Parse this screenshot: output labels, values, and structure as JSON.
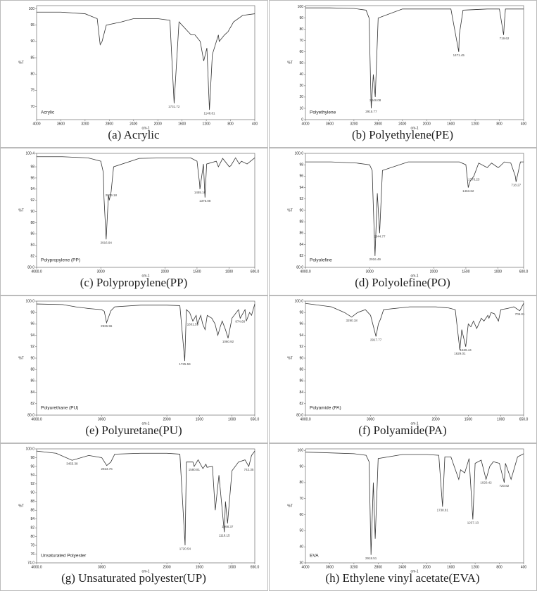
{
  "chart_data": [
    {
      "type": "line",
      "title": "(a) Acrylic",
      "annotation": "Acrylic",
      "xlabel": "cm-1",
      "ylabel": "%T",
      "x": [
        4000,
        3600,
        3200,
        3000,
        2951,
        2920,
        2850,
        2600,
        2400,
        2000,
        1800,
        1731,
        1650,
        1450,
        1387,
        1300,
        1242,
        1190,
        1148,
        1100,
        1000,
        987,
        900,
        841,
        750,
        600,
        400
      ],
      "series": [
        {
          "color": "#333333",
          "values": [
            99,
            99,
            98.5,
            97,
            89,
            90,
            95,
            96,
            97,
            97,
            96.5,
            71,
            96,
            92,
            92,
            90,
            84,
            88,
            69,
            86,
            92,
            90,
            92,
            93,
            96,
            98,
            98.5
          ]
        }
      ],
      "xlim": [
        4000,
        400
      ],
      "xticks": [
        4000,
        3600,
        3200,
        2800,
        2400,
        2000,
        1600,
        1200,
        800,
        400
      ],
      "ylim": [
        66,
        101
      ],
      "yticks": [
        70,
        75,
        80,
        85,
        90,
        95,
        100
      ],
      "peaks": [
        {
          "x": 1731.72,
          "y": 71
        },
        {
          "x": 1148.81,
          "y": 69
        }
      ]
    },
    {
      "type": "line",
      "title": "(b) Polyethylene(PE)",
      "annotation": "Polyethylene",
      "xlabel": "cm-1",
      "ylabel": "%T",
      "x": [
        4000,
        3600,
        3200,
        3000,
        2950,
        2915,
        2880,
        2848,
        2800,
        2400,
        2000,
        1600,
        1470,
        1462,
        1400,
        1000,
        800,
        730,
        719,
        700,
        400
      ],
      "series": [
        {
          "color": "#333333",
          "values": [
            99,
            99,
            98.5,
            97,
            90,
            10,
            40,
            20,
            90,
            98,
            98,
            98,
            60,
            75,
            97,
            98,
            98,
            75,
            85,
            98,
            98
          ]
        }
      ],
      "xlim": [
        4000,
        400
      ],
      "xticks": [
        4000,
        3600,
        3200,
        2800,
        2400,
        2000,
        1600,
        1200,
        800,
        400
      ],
      "ylim": [
        0,
        101
      ],
      "yticks": [
        0,
        10,
        20,
        30,
        40,
        50,
        60,
        70,
        80,
        90,
        100
      ],
      "peaks": [
        {
          "x": 2915.77,
          "y": 10
        },
        {
          "x": 2848.08,
          "y": 20
        },
        {
          "x": 1471.45,
          "y": 60
        },
        {
          "x": 719.62,
          "y": 75
        }
      ]
    },
    {
      "type": "line",
      "title": "(c) Polypropylene(PP)",
      "annotation": "Polypropylene (PP)",
      "xlabel": "cm-1",
      "ylabel": "%T",
      "x": [
        4000,
        3600,
        3200,
        3000,
        2960,
        2950,
        2916,
        2880,
        2868,
        2839,
        2800,
        2400,
        2000,
        1600,
        1500,
        1460,
        1455,
        1400,
        1376,
        1350,
        1200,
        1167,
        1100,
        997,
        973,
        900,
        841,
        808,
        720,
        600
      ],
      "series": [
        {
          "color": "#333333",
          "values": [
            99.8,
            99.8,
            99.6,
            99,
            97,
            92.5,
            85,
            93,
            92,
            93.5,
            98,
            99.5,
            99.6,
            99.6,
            99,
            95,
            94,
            98.5,
            92.5,
            98.5,
            99,
            98,
            99.5,
            98,
            98.2,
            99.6,
            98.5,
            99,
            98.5,
            99.6
          ]
        }
      ],
      "xlim": [
        4000,
        600
      ],
      "xticks": [
        {
          "value": 4000,
          "label": "4000.0"
        },
        3000,
        2000,
        1500,
        1000,
        {
          "value": 600,
          "label": "600.0"
        }
      ],
      "ylim": [
        80,
        100.4
      ],
      "yticks": [
        {
          "value": 80,
          "label": "80.0"
        },
        82,
        84,
        86,
        88,
        90,
        92,
        94,
        96,
        98,
        100.4
      ],
      "peaks": [
        {
          "x": 2916.94,
          "y": 85
        },
        {
          "x": 2839.18,
          "y": 93.5
        },
        {
          "x": 1455.16,
          "y": 94
        },
        {
          "x": 1376.08,
          "y": 92.5
        }
      ]
    },
    {
      "type": "line",
      "title": "(d) Polyolefine(PO)",
      "annotation": "Polyolefine",
      "xlabel": "cm-1",
      "ylabel": "%T",
      "x": [
        4000,
        3600,
        3200,
        3000,
        2960,
        2949,
        2916,
        2880,
        2844,
        2800,
        2400,
        2000,
        1600,
        1500,
        1463,
        1440,
        1376,
        1300,
        1167,
        1100,
        997,
        973,
        900,
        800,
        730,
        718,
        650,
        600
      ],
      "series": [
        {
          "color": "#333333",
          "values": [
            98.5,
            98.5,
            98.3,
            98,
            97,
            93,
            82,
            93,
            86,
            97,
            98.5,
            98.5,
            98.5,
            98,
            94,
            95,
            96,
            98.3,
            97.5,
            98.3,
            97.5,
            97.7,
            98.5,
            98.3,
            96,
            95,
            98.5,
            98.5
          ]
        }
      ],
      "xlim": [
        4000,
        600
      ],
      "xticks": [
        {
          "value": 4000,
          "label": "4000.0"
        },
        3000,
        2000,
        1500,
        1000,
        {
          "value": 600,
          "label": "600.0"
        }
      ],
      "ylim": [
        80,
        100
      ],
      "yticks": [
        {
          "value": 80,
          "label": "80.0"
        },
        82,
        84,
        86,
        88,
        90,
        92,
        94,
        96,
        98,
        {
          "value": 100,
          "label": "100.0"
        }
      ],
      "peaks": [
        {
          "x": 2916.49,
          "y": 82
        },
        {
          "x": 2844.77,
          "y": 86
        },
        {
          "x": 1463.62,
          "y": 94
        },
        {
          "x": 1376.23,
          "y": 96
        },
        {
          "x": 718.27,
          "y": 95
        }
      ]
    },
    {
      "type": "line",
      "title": "(e) Polyuretane(PU)",
      "annotation": "Polyurethane (PU)",
      "xlabel": "cm-1",
      "ylabel": "%T",
      "x": [
        4000,
        3600,
        3400,
        3200,
        3000,
        2960,
        2926,
        2860,
        2800,
        2400,
        2000,
        1800,
        1725,
        1700,
        1650,
        1601,
        1550,
        1530,
        1480,
        1450,
        1413,
        1380,
        1310,
        1260,
        1217,
        1180,
        1150,
        1100,
        1060,
        1000,
        900,
        874,
        800,
        780,
        730,
        700,
        650
      ],
      "series": [
        {
          "color": "#333333",
          "values": [
            99.5,
            99.4,
            99,
            98.7,
            98.5,
            98.2,
            96.2,
            98.3,
            99,
            99.3,
            99.3,
            99.2,
            89.5,
            98.5,
            98,
            96.5,
            97.5,
            96,
            97.5,
            96,
            95,
            97.5,
            97,
            96,
            94,
            95.5,
            96.5,
            95,
            93.5,
            97,
            98.5,
            97,
            98.5,
            96.5,
            98,
            97.5,
            99.5
          ]
        }
      ],
      "xlim": [
        4000,
        650
      ],
      "xticks": [
        {
          "value": 4000,
          "label": "4000.0"
        },
        3000,
        2000,
        1500,
        1000,
        {
          "value": 650,
          "label": "650.0"
        }
      ],
      "ylim": [
        80,
        100
      ],
      "yticks": [
        {
          "value": 80,
          "label": "80.0"
        },
        82,
        84,
        86,
        88,
        90,
        92,
        94,
        96,
        98,
        {
          "value": 100,
          "label": "100.0"
        }
      ],
      "peaks": [
        {
          "x": 2926.96,
          "y": 96.2
        },
        {
          "x": 1725.59,
          "y": 89.5
        },
        {
          "x": 1601.59,
          "y": 96.5
        },
        {
          "x": 1060.92,
          "y": 93.5
        },
        {
          "x": 874.68,
          "y": 97
        }
      ]
    },
    {
      "type": "line",
      "title": "(f) Polyamide(PA)",
      "annotation": "Polyamide (PA)",
      "xlabel": "cm-1",
      "ylabel": "%T",
      "x": [
        4000,
        3600,
        3400,
        3290,
        3200,
        3080,
        3000,
        2917,
        2880,
        2849,
        2800,
        2400,
        2000,
        1800,
        1700,
        1629,
        1600,
        1539,
        1500,
        1460,
        1420,
        1370,
        1300,
        1259,
        1200,
        1182,
        1150,
        1100,
        1037,
        1000,
        900,
        800,
        709,
        650
      ],
      "series": [
        {
          "color": "#333333",
          "values": [
            99.6,
            99,
            98,
            97.2,
            98,
            98.5,
            97.5,
            93.8,
            96,
            96.8,
            98.5,
            99,
            99,
            98.8,
            98.5,
            91.4,
            95,
            92,
            96,
            95.5,
            96.5,
            95.2,
            97,
            96.5,
            97.5,
            97,
            98,
            97.8,
            96.5,
            98.5,
            98.7,
            99,
            98.3,
            99.6
          ]
        }
      ],
      "xlim": [
        4000,
        650
      ],
      "xticks": [
        {
          "value": 4000,
          "label": "4000.0"
        },
        3000,
        2000,
        1500,
        1000,
        {
          "value": 650,
          "label": "650.0"
        }
      ],
      "ylim": [
        80,
        100
      ],
      "yticks": [
        {
          "value": 80,
          "label": "80.0"
        },
        82,
        84,
        86,
        88,
        90,
        92,
        94,
        96,
        98,
        {
          "value": 100,
          "label": "100.0"
        }
      ],
      "peaks": [
        {
          "x": 3290.18,
          "y": 97.2
        },
        {
          "x": 2917.77,
          "y": 93.8
        },
        {
          "x": 1629.01,
          "y": 91.4
        },
        {
          "x": 1539.44,
          "y": 92
        },
        {
          "x": 709.81,
          "y": 98.3
        }
      ]
    },
    {
      "type": "line",
      "title": "(g) Unsaturated polyester(UP)",
      "annotation": "Unsaturated Polyester",
      "xlabel": "cm-1",
      "ylabel": "%T",
      "x": [
        4000,
        3700,
        3455,
        3200,
        3000,
        2923,
        2860,
        2800,
        2400,
        2000,
        1800,
        1720,
        1700,
        1600,
        1580,
        1520,
        1447,
        1400,
        1384,
        1300,
        1257,
        1200,
        1118,
        1100,
        1068,
        1000,
        900,
        800,
        742,
        700,
        650
      ],
      "series": [
        {
          "color": "#333333",
          "values": [
            99.5,
            99,
            97.4,
            98.5,
            98,
            96.2,
            97,
            98.8,
            99,
            99,
            98.8,
            78,
            97,
            97,
            96,
            97.5,
            95.5,
            96.5,
            95.8,
            96,
            86,
            94,
            81,
            88,
            83,
            95,
            97,
            97.5,
            96,
            98.5,
            99.5
          ]
        }
      ],
      "xlim": [
        4000,
        650
      ],
      "xticks": [
        {
          "value": 4000,
          "label": "4000.0"
        },
        3000,
        2000,
        1500,
        1000,
        {
          "value": 650,
          "label": "650.0"
        }
      ],
      "ylim": [
        74,
        100
      ],
      "yticks": [
        {
          "value": 74,
          "label": "74.0"
        },
        76,
        78,
        80,
        82,
        84,
        86,
        88,
        90,
        92,
        94,
        96,
        98,
        {
          "value": 100,
          "label": "100.0"
        }
      ],
      "peaks": [
        {
          "x": 3455.38,
          "y": 97.4
        },
        {
          "x": 2923.76,
          "y": 96.2
        },
        {
          "x": 1720.54,
          "y": 78
        },
        {
          "x": 1580.81,
          "y": 96
        },
        {
          "x": 1118.15,
          "y": 81
        },
        {
          "x": 1068.37,
          "y": 83
        },
        {
          "x": 742.35,
          "y": 96
        }
      ]
    },
    {
      "type": "line",
      "title": "(h) Ethylene vinyl acetate(EVA)",
      "annotation": "EVA",
      "xlabel": "cm-1",
      "ylabel": "%T",
      "x": [
        4000,
        3600,
        3200,
        3000,
        2950,
        2918,
        2880,
        2849,
        2800,
        2400,
        2000,
        1800,
        1738,
        1700,
        1600,
        1470,
        1440,
        1372,
        1300,
        1238,
        1200,
        1100,
        1020,
        960,
        900,
        800,
        720,
        700,
        607,
        500,
        400
      ],
      "series": [
        {
          "color": "#333333",
          "values": [
            99,
            98.5,
            98,
            97,
            93,
            35,
            80,
            45,
            95,
            97.5,
            97.5,
            97,
            65,
            96,
            96,
            82,
            88,
            86,
            95,
            57,
            92,
            94,
            82,
            90,
            93,
            92,
            80,
            92,
            82,
            96,
            98
          ]
        }
      ],
      "xlim": [
        4000,
        400
      ],
      "xticks": [
        4000,
        3600,
        3200,
        2800,
        2400,
        2000,
        1600,
        1200,
        800,
        400
      ],
      "ylim": [
        30,
        101
      ],
      "yticks": [
        30,
        40,
        50,
        60,
        70,
        80,
        90,
        100
      ],
      "peaks": [
        {
          "x": 2918.51,
          "y": 35
        },
        {
          "x": 1738.81,
          "y": 65
        },
        {
          "x": 1237.13,
          "y": 57
        },
        {
          "x": 1020.42,
          "y": 82
        },
        {
          "x": 720.82,
          "y": 80
        }
      ]
    }
  ]
}
